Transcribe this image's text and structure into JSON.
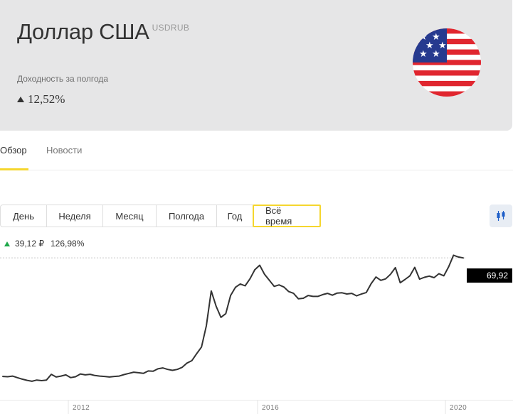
{
  "header": {
    "title": "Доллар США",
    "ticker": "USDRUB",
    "yield_label": "Доходность за полгода",
    "yield_value": "12,52%",
    "flag_icon": "us-flag-icon"
  },
  "tabs": [
    {
      "label": "Обзор",
      "active": true
    },
    {
      "label": "Новости",
      "active": false
    }
  ],
  "periods": [
    {
      "label": "День",
      "active": false
    },
    {
      "label": "Неделя",
      "active": false
    },
    {
      "label": "Месяц",
      "active": false
    },
    {
      "label": "Полгода",
      "active": false
    },
    {
      "label": "Год",
      "active": false
    },
    {
      "label": "Всё время",
      "active": true
    }
  ],
  "chart_type_icon": "candlestick-icon",
  "change": {
    "absolute": "39,12 ₽",
    "percent": "126,98%"
  },
  "colors": {
    "accent": "#f5d62e",
    "header_bg": "#e6e6e7",
    "line": "#333333",
    "up": "#1ea84a"
  },
  "chart_data": {
    "type": "line",
    "x_tick_labels": [
      "2012",
      "2016",
      "2020"
    ],
    "last_value_label": "69,92",
    "last_value": 69.92,
    "reference_line": 69.92,
    "series": [
      {
        "values": [
          30.8,
          30.7,
          30.9,
          30.4,
          29.9,
          29.5,
          29.2,
          29.6,
          29.4,
          29.6,
          31.5,
          30.6,
          30.9,
          31.3,
          30.4,
          30.7,
          31.6,
          31.3,
          31.5,
          31.1,
          30.9,
          30.8,
          30.6,
          30.8,
          30.9,
          31.4,
          31.8,
          32.2,
          32.0,
          31.8,
          32.6,
          32.5,
          33.3,
          33.6,
          33.1,
          32.8,
          33.1,
          33.8,
          35.2,
          36.0,
          38.3,
          40.5,
          47.5,
          59.0,
          54.0,
          50.3,
          51.5,
          57.5,
          60.2,
          61.3,
          60.7,
          63.0,
          66.0,
          67.5,
          64.5,
          62.5,
          60.5,
          61.0,
          60.3,
          58.8,
          58.2,
          56.4,
          56.6,
          57.5,
          57.2,
          57.2,
          57.8,
          58.2,
          57.6,
          58.3,
          58.4,
          58.0,
          58.2,
          57.4,
          58.0,
          58.5,
          61.4,
          63.6,
          62.5,
          63.0,
          64.5,
          66.7,
          61.7,
          62.8,
          64.0,
          66.8,
          62.9,
          63.5,
          63.9,
          63.4,
          64.7,
          64.0,
          67.0,
          70.8,
          70.2,
          69.9
        ]
      }
    ]
  }
}
